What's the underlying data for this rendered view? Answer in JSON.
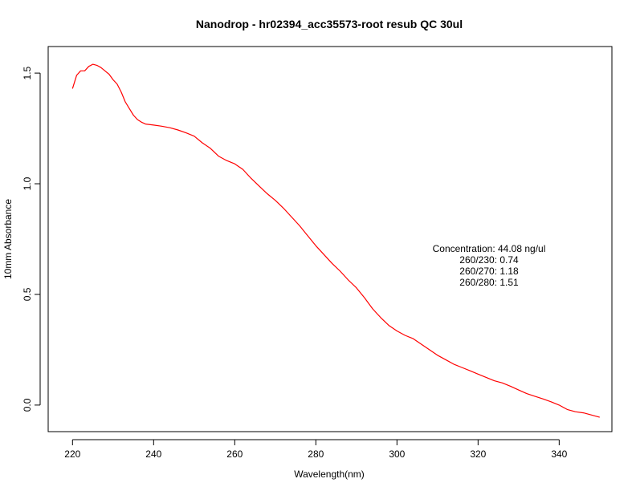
{
  "chart_data": {
    "type": "line",
    "title": "Nanodrop - hr02394_acc35573-root resub QC 30ul",
    "xlabel": "Wavelength(nm)",
    "ylabel": "10mm Absorbance",
    "xlim": [
      214,
      353
    ],
    "ylim": [
      -0.12,
      1.62
    ],
    "x_ticks": [
      220,
      240,
      260,
      280,
      300,
      320,
      340
    ],
    "y_ticks": [
      0.0,
      0.5,
      1.0,
      1.5
    ],
    "x_tick_labels": [
      "220",
      "240",
      "260",
      "280",
      "300",
      "320",
      "340"
    ],
    "y_tick_labels": [
      "0.0",
      "0.5",
      "1.0",
      "1.5"
    ],
    "grid": false,
    "legend": "none",
    "series": [
      {
        "color": "#ff0000",
        "x": [
          220,
          221,
          222,
          223,
          224,
          225,
          226,
          227,
          228,
          229,
          230,
          231,
          232,
          233,
          234,
          235,
          236,
          237,
          238,
          240,
          242,
          244,
          246,
          248,
          250,
          252,
          254,
          256,
          258,
          260,
          262,
          264,
          266,
          268,
          270,
          272,
          274,
          276,
          278,
          280,
          282,
          284,
          286,
          288,
          290,
          292,
          294,
          296,
          298,
          300,
          302,
          304,
          306,
          308,
          310,
          312,
          314,
          316,
          318,
          320,
          322,
          324,
          326,
          328,
          330,
          332,
          334,
          336,
          338,
          340,
          342,
          344,
          346,
          348,
          350
        ],
        "values": [
          1.43,
          1.49,
          1.51,
          1.51,
          1.53,
          1.54,
          1.535,
          1.525,
          1.51,
          1.495,
          1.47,
          1.45,
          1.415,
          1.37,
          1.34,
          1.31,
          1.29,
          1.278,
          1.27,
          1.265,
          1.26,
          1.253,
          1.243,
          1.23,
          1.215,
          1.185,
          1.16,
          1.125,
          1.105,
          1.09,
          1.065,
          1.025,
          0.99,
          0.955,
          0.925,
          0.89,
          0.85,
          0.81,
          0.765,
          0.72,
          0.68,
          0.64,
          0.605,
          0.565,
          0.53,
          0.485,
          0.435,
          0.395,
          0.36,
          0.335,
          0.315,
          0.3,
          0.275,
          0.25,
          0.225,
          0.205,
          0.185,
          0.17,
          0.155,
          0.14,
          0.125,
          0.11,
          0.1,
          0.085,
          0.068,
          0.052,
          0.04,
          0.028,
          0.015,
          0.0,
          -0.02,
          -0.03,
          -0.035,
          -0.045,
          -0.055
        ]
      }
    ],
    "annotations": [
      "Concentration: 44.08 ng/ul",
      "260/230: 0.74",
      "260/270: 1.18",
      "260/280: 1.51"
    ]
  }
}
